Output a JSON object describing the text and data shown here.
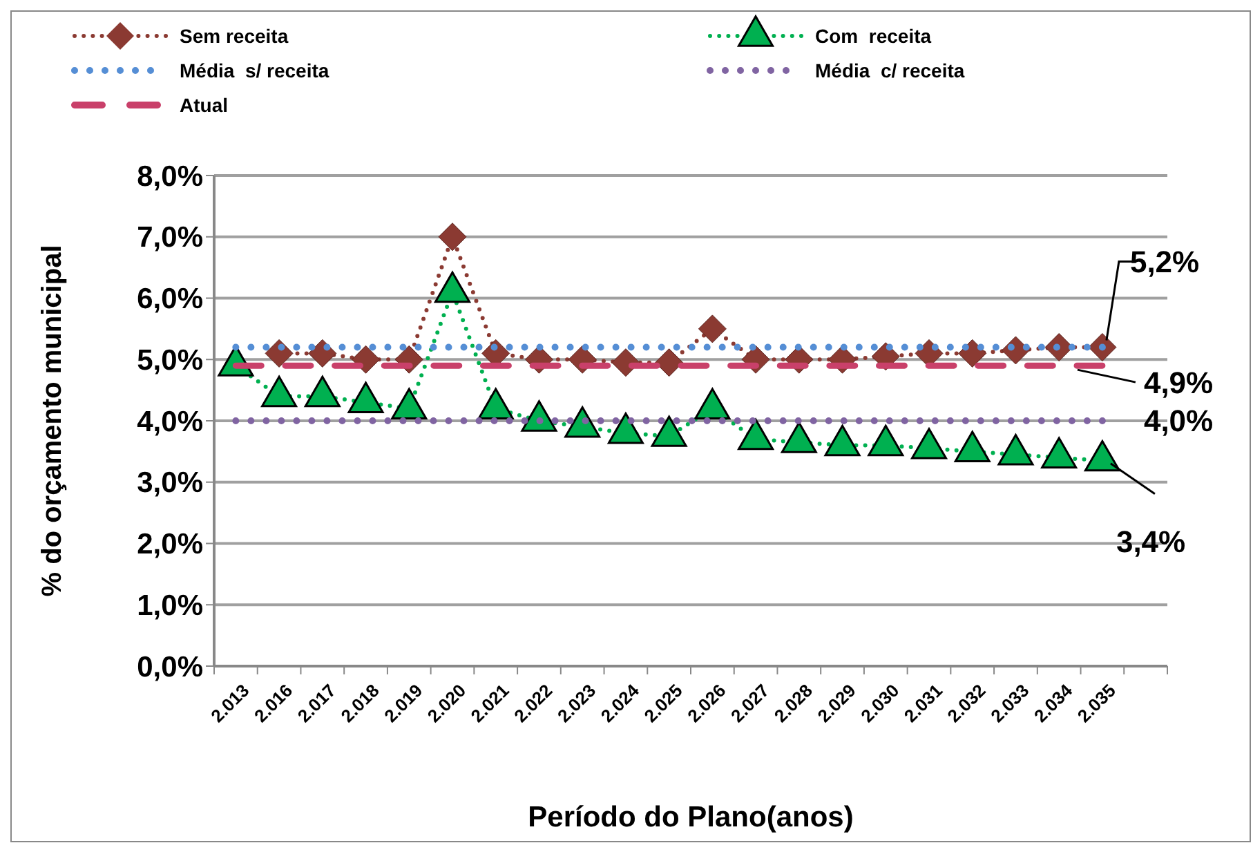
{
  "chart_data": {
    "type": "line",
    "xlabel": "Período do Plano(anos)",
    "ylabel": "% do orçamento municipal",
    "categories": [
      "2.013",
      "2.016",
      "2.017",
      "2.018",
      "2.019",
      "2.020",
      "2.021",
      "2.022",
      "2.023",
      "2.024",
      "2.025",
      "2.026",
      "2.027",
      "2.028",
      "2.029",
      "2.030",
      "2.031",
      "2.032",
      "2.033",
      "2.034",
      "2.035",
      null
    ],
    "ylim": [
      0,
      8
    ],
    "yticks": [
      {
        "value": 0,
        "label": "0,0%"
      },
      {
        "value": 1,
        "label": "1,0%"
      },
      {
        "value": 2,
        "label": "2,0%"
      },
      {
        "value": 3,
        "label": "3,0%"
      },
      {
        "value": 4,
        "label": "4,0%"
      },
      {
        "value": 5,
        "label": "5,0%"
      },
      {
        "value": 6,
        "label": "6,0%"
      },
      {
        "value": 7,
        "label": "7,0%"
      },
      {
        "value": 8,
        "label": "8,0%"
      }
    ],
    "grid": "y",
    "legend": "top",
    "series": [
      {
        "name": "Sem receita",
        "color": "#8b3a32",
        "line_style": "dotted",
        "marker": "diamond",
        "values": [
          null,
          5.1,
          5.1,
          5.0,
          5.0,
          7.0,
          5.1,
          5.0,
          5.0,
          4.95,
          4.95,
          5.5,
          5.0,
          5.0,
          5.0,
          5.05,
          5.1,
          5.1,
          5.15,
          5.2,
          5.2,
          null
        ]
      },
      {
        "name": "Com  receita",
        "color": "#00b050",
        "line_style": "dotted",
        "marker": "triangle",
        "values": [
          4.9,
          4.4,
          4.4,
          4.3,
          4.2,
          6.1,
          4.2,
          4.0,
          3.9,
          3.8,
          3.75,
          4.2,
          3.7,
          3.65,
          3.6,
          3.6,
          3.55,
          3.5,
          3.45,
          3.4,
          3.35,
          null
        ]
      },
      {
        "name": "Média  s/ receita",
        "color": "#558ed5",
        "line_style": "dotted",
        "marker": "none",
        "values": [
          5.2,
          5.2,
          5.2,
          5.2,
          5.2,
          5.2,
          5.2,
          5.2,
          5.2,
          5.2,
          5.2,
          5.2,
          5.2,
          5.2,
          5.2,
          5.2,
          5.2,
          5.2,
          5.2,
          5.2,
          5.2,
          null
        ]
      },
      {
        "name": "Média  c/ receita",
        "color": "#8064a2",
        "line_style": "dotted",
        "marker": "none",
        "values": [
          4.0,
          4.0,
          4.0,
          4.0,
          4.0,
          4.0,
          4.0,
          4.0,
          4.0,
          4.0,
          4.0,
          4.0,
          4.0,
          4.0,
          4.0,
          4.0,
          4.0,
          4.0,
          4.0,
          4.0,
          4.0,
          null
        ]
      },
      {
        "name": "Atual",
        "color": "#c9406a",
        "line_style": "dashed",
        "marker": "none",
        "values": [
          4.9,
          4.9,
          4.9,
          4.9,
          4.9,
          4.9,
          4.9,
          4.9,
          4.9,
          4.9,
          4.9,
          4.9,
          4.9,
          4.9,
          4.9,
          4.9,
          4.9,
          4.9,
          4.9,
          4.9,
          4.9,
          null
        ]
      }
    ],
    "annotations": [
      {
        "text": "5,2%",
        "x": "2.035",
        "y": 5.2
      },
      {
        "text": "4,9%",
        "x": "2.035",
        "y": 4.9
      },
      {
        "text": "4,0%",
        "x": "2.035",
        "y": 4.0
      },
      {
        "text": "3,4%",
        "x": "2.035",
        "y": 3.35
      }
    ]
  }
}
